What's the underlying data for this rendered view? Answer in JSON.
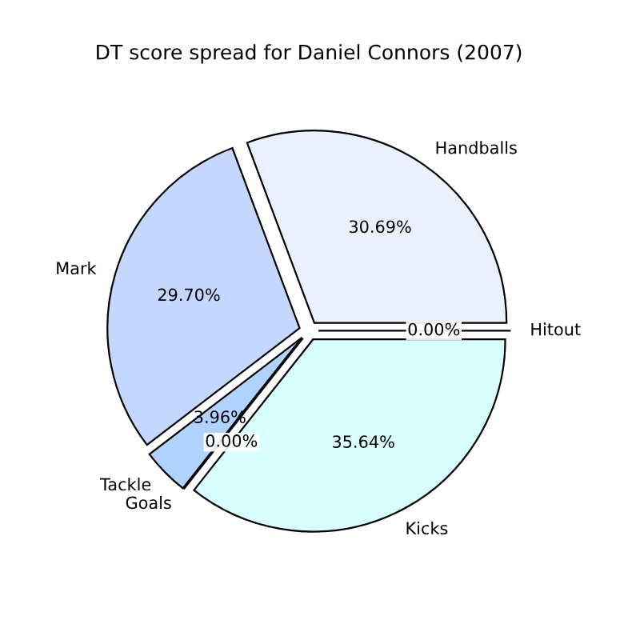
{
  "chart_data": {
    "type": "pie",
    "title": "DT score spread for Daniel Connors (2007)",
    "categories": [
      "Handballs",
      "Mark",
      "Tackle",
      "Goals",
      "Kicks",
      "Hitout"
    ],
    "values": [
      30.69,
      29.7,
      3.96,
      0.0,
      35.64,
      0.0
    ],
    "value_labels": [
      "30.69%",
      "29.70%",
      "3.96%",
      "0.00%",
      "35.64%",
      "0.00%"
    ],
    "colors": [
      "#ebf0ff",
      "#c4d8ff",
      "#b0d2ff",
      "#d0e8ff",
      "#d8ffff",
      "#e0f0ff"
    ]
  }
}
